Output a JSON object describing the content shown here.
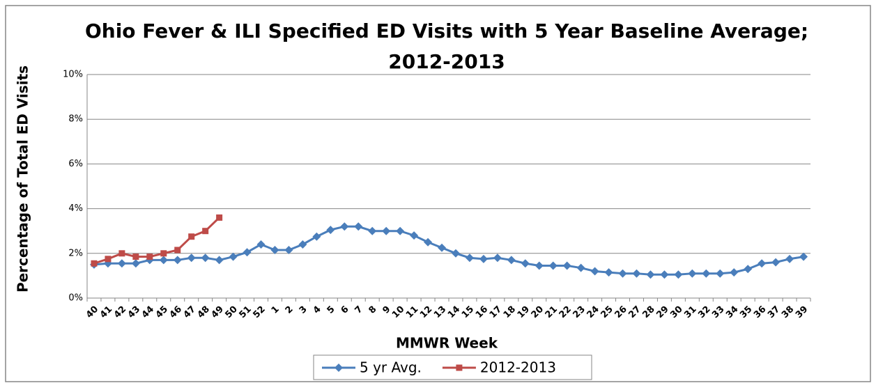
{
  "chart_data": {
    "type": "line",
    "title": [
      "Ohio Fever & ILI Specified ED Visits with 5 Year Baseline Average;",
      "2012-2013"
    ],
    "x_label": "MMWR Week",
    "y_label": "Percentage of Total ED Visits",
    "categories": [
      "40",
      "41",
      "42",
      "43",
      "44",
      "45",
      "46",
      "47",
      "48",
      "49",
      "50",
      "51",
      "52",
      "1",
      "2",
      "3",
      "4",
      "5",
      "6",
      "7",
      "8",
      "9",
      "10",
      "11",
      "12",
      "13",
      "14",
      "15",
      "16",
      "17",
      "18",
      "19",
      "20",
      "21",
      "22",
      "23",
      "24",
      "25",
      "26",
      "27",
      "28",
      "29",
      "30",
      "31",
      "32",
      "33",
      "34",
      "35",
      "36",
      "37",
      "38",
      "39"
    ],
    "series": [
      {
        "name": "5 yr Avg.",
        "color": "#4a7ebb",
        "marker": "diamond",
        "values": [
          1.5,
          1.55,
          1.55,
          1.55,
          1.7,
          1.7,
          1.7,
          1.8,
          1.8,
          1.7,
          1.85,
          2.05,
          2.4,
          2.15,
          2.15,
          2.4,
          2.75,
          3.05,
          3.2,
          3.2,
          3.0,
          3.0,
          3.0,
          2.8,
          2.5,
          2.25,
          2.0,
          1.8,
          1.75,
          1.8,
          1.7,
          1.55,
          1.45,
          1.45,
          1.45,
          1.35,
          1.2,
          1.15,
          1.1,
          1.1,
          1.05,
          1.05,
          1.05,
          1.1,
          1.1,
          1.1,
          1.15,
          1.3,
          1.55,
          1.6,
          1.75,
          1.85
        ]
      },
      {
        "name": "2012-2013",
        "color": "#be4b48",
        "marker": "square",
        "values": [
          1.55,
          1.75,
          2.0,
          1.85,
          1.85,
          2.0,
          2.15,
          2.75,
          3.0,
          3.6,
          null,
          null,
          null,
          null,
          null,
          null,
          null,
          null,
          null,
          null,
          null,
          null,
          null,
          null,
          null,
          null,
          null,
          null,
          null,
          null,
          null,
          null,
          null,
          null,
          null,
          null,
          null,
          null,
          null,
          null,
          null,
          null,
          null,
          null,
          null,
          null,
          null,
          null,
          null,
          null,
          null,
          null
        ]
      }
    ],
    "ylim": [
      0,
      10
    ],
    "yticks": [
      {
        "value": 0,
        "label": "0%"
      },
      {
        "value": 2,
        "label": "2%"
      },
      {
        "value": 4,
        "label": "4%"
      },
      {
        "value": 6,
        "label": "6%"
      },
      {
        "value": 8,
        "label": "8%"
      },
      {
        "value": 10,
        "label": "10%"
      }
    ],
    "grid": true,
    "legend": "bottom"
  }
}
